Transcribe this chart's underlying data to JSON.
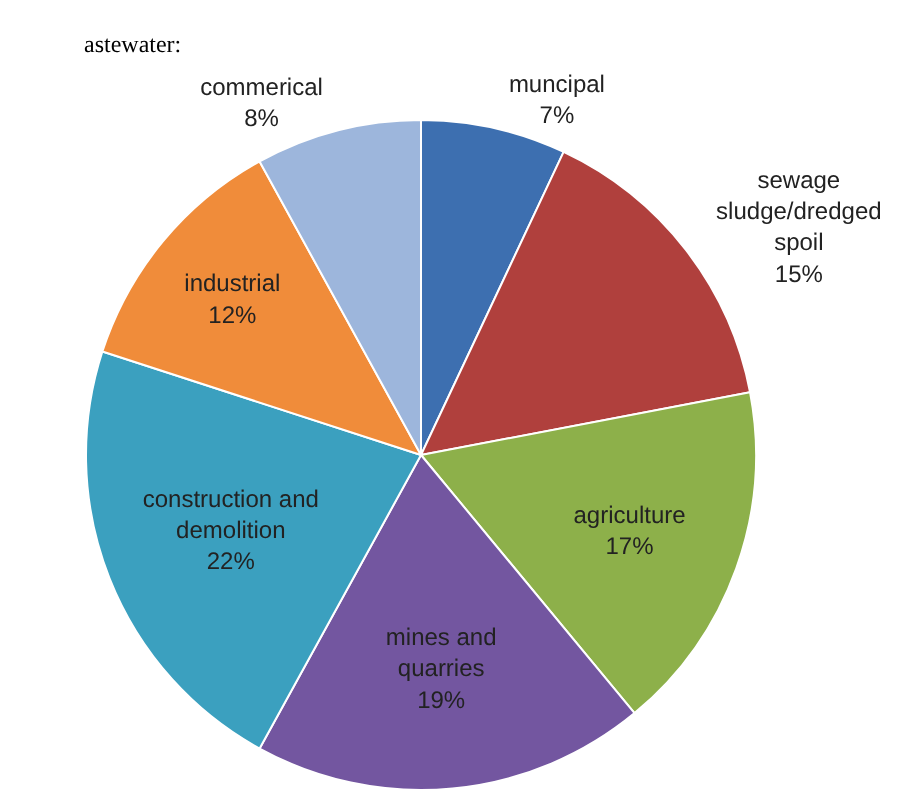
{
  "chart_data": {
    "type": "pie",
    "categories": [
      "muncipal",
      "sewage sludge/dredged spoil",
      "agriculture",
      "mines and quarries",
      "construction and demolition",
      "industrial",
      "commerical"
    ],
    "values": [
      7,
      15,
      17,
      19,
      22,
      12,
      8
    ],
    "value_labels": [
      "7%",
      "15%",
      "17%",
      "19%",
      "22%",
      "12%",
      "8%"
    ],
    "colors": [
      "#3d6fb0",
      "#b0403d",
      "#8db04a",
      "#7356a0",
      "#3ba0bf",
      "#f08c3a",
      "#9db6dc"
    ],
    "annotations": [
      "astewater:"
    ],
    "legend": false
  }
}
